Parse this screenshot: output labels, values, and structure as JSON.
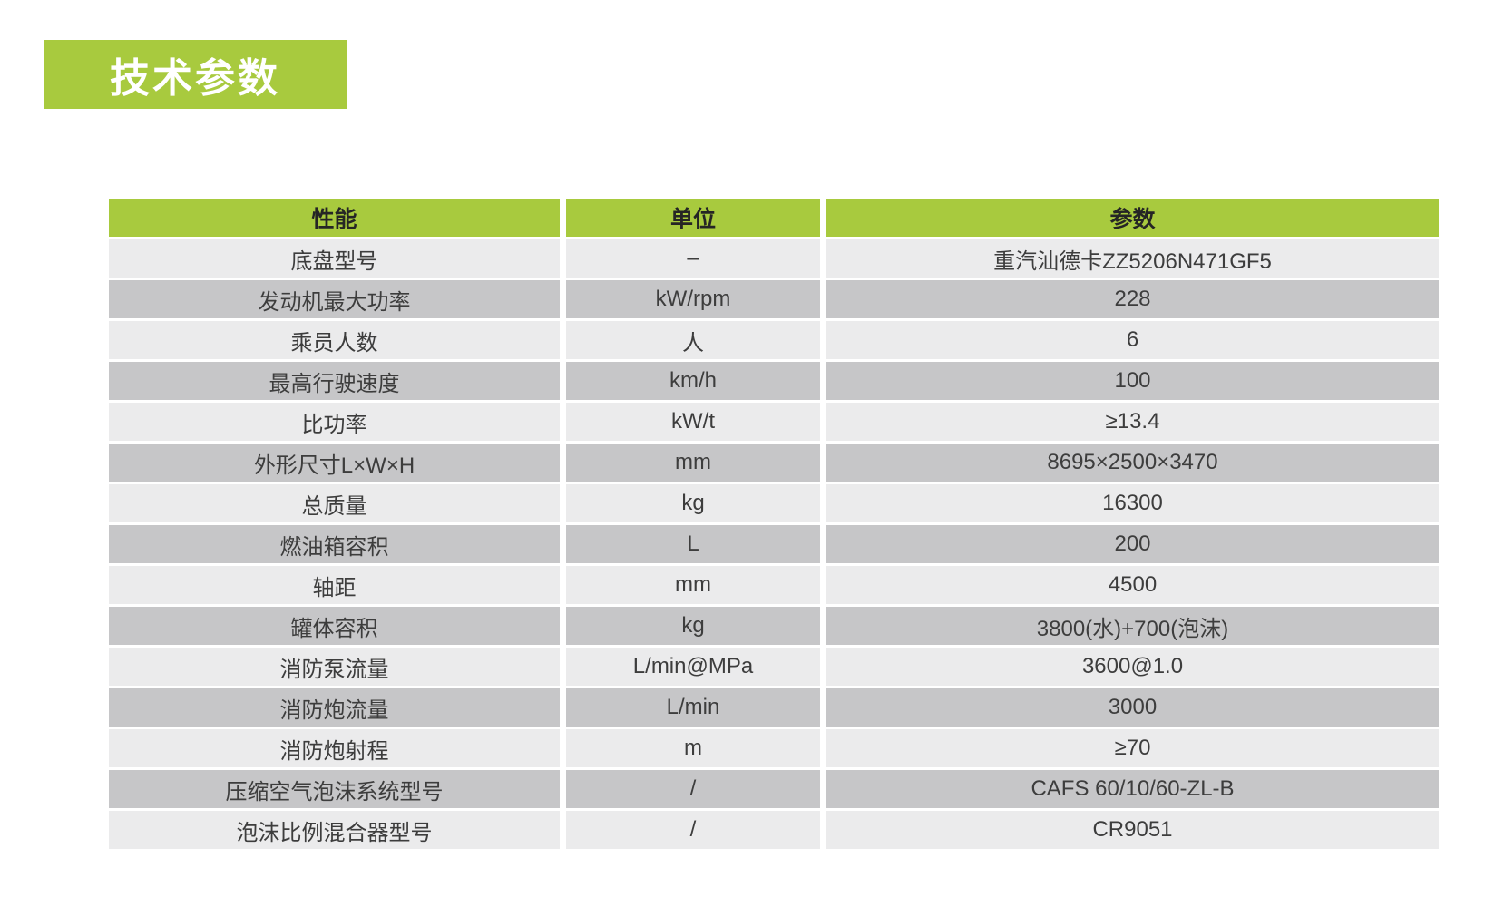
{
  "page": {
    "title": "技术参数",
    "accent_color": "#a8ca3e",
    "row_light_color": "#ebebec",
    "row_dark_color": "#c6c6c8",
    "cell_text_color": "#3d3d3d",
    "header_text_color": "#252525"
  },
  "table": {
    "columns": [
      {
        "label": "性能"
      },
      {
        "label": "单位"
      },
      {
        "label": "参数"
      }
    ],
    "rows": [
      {
        "property": "底盘型号",
        "unit": "–",
        "value": "重汽汕德卡ZZ5206N471GF5"
      },
      {
        "property": "发动机最大功率",
        "unit": "kW/rpm",
        "value": "228"
      },
      {
        "property": "乘员人数",
        "unit": "人",
        "value": "6"
      },
      {
        "property": "最高行驶速度",
        "unit": "km/h",
        "value": "100"
      },
      {
        "property": "比功率",
        "unit": "kW/t",
        "value": "≥13.4"
      },
      {
        "property": "外形尺寸L×W×H",
        "unit": "mm",
        "value": "8695×2500×3470"
      },
      {
        "property": "总质量",
        "unit": "kg",
        "value": "16300"
      },
      {
        "property": "燃油箱容积",
        "unit": "L",
        "value": "200"
      },
      {
        "property": "轴距",
        "unit": "mm",
        "value": "4500"
      },
      {
        "property": "罐体容积",
        "unit": "kg",
        "value": "3800(水)+700(泡沫)"
      },
      {
        "property": "消防泵流量",
        "unit": "L/min@MPa",
        "value": "3600@1.0"
      },
      {
        "property": "消防炮流量",
        "unit": "L/min",
        "value": "3000"
      },
      {
        "property": "消防炮射程",
        "unit": "m",
        "value": "≥70"
      },
      {
        "property": "压缩空气泡沫系统型号",
        "unit": "/",
        "value": "CAFS 60/10/60-ZL-B"
      },
      {
        "property": "泡沫比例混合器型号",
        "unit": "/",
        "value": "CR9051"
      }
    ]
  }
}
